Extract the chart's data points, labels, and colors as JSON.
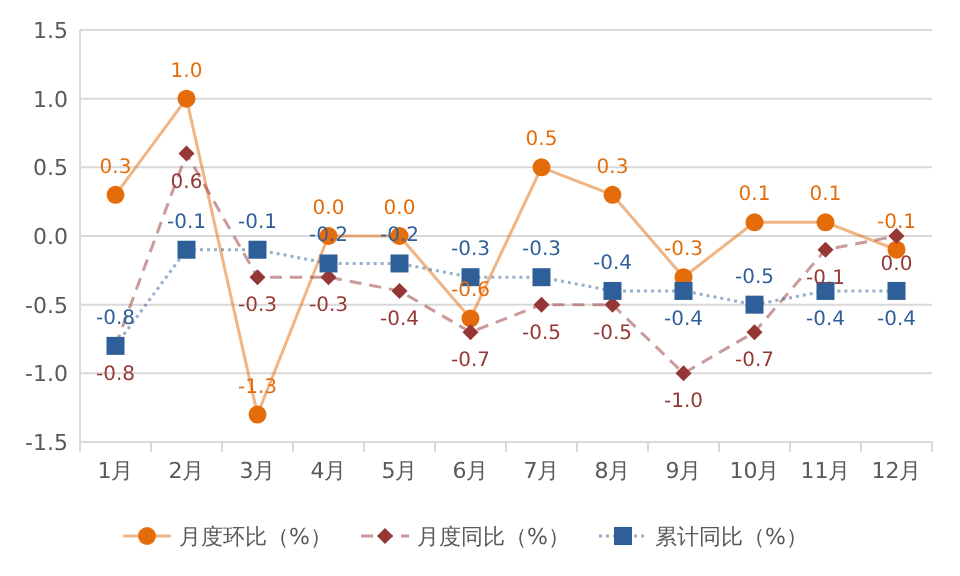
{
  "chart_data": {
    "type": "line",
    "categories": [
      "1月",
      "2月",
      "3月",
      "4月",
      "5月",
      "6月",
      "7月",
      "8月",
      "9月",
      "10月",
      "11月",
      "12月"
    ],
    "series": [
      {
        "name": "月度环比（%）",
        "color": "#e46c0a",
        "marker": "circle",
        "line_style": "solid",
        "values": [
          0.3,
          1.0,
          -1.3,
          0.0,
          0.0,
          -0.6,
          0.5,
          0.3,
          -0.3,
          0.1,
          0.1,
          -0.1
        ],
        "value_labels": [
          "0.3",
          "1.0",
          "-1.3",
          "0.0",
          "0.0",
          "-0.6",
          "0.5",
          "0.3",
          "-0.3",
          "0.1",
          "0.1",
          "-0.1"
        ]
      },
      {
        "name": "月度同比（%）",
        "color": "#953735",
        "marker": "diamond",
        "line_style": "dashed",
        "values": [
          -0.8,
          0.6,
          -0.3,
          -0.3,
          -0.4,
          -0.7,
          -0.5,
          -0.5,
          -1.0,
          -0.7,
          -0.1,
          0.0
        ],
        "value_labels": [
          "-0.8",
          "0.6",
          "-0.3",
          "-0.3",
          "-0.4",
          "-0.7",
          "-0.5",
          "-0.5",
          "-1.0",
          "-0.7",
          "-0.1",
          "0.0"
        ]
      },
      {
        "name": "累计同比（%）",
        "color": "#2f5f98",
        "marker": "square",
        "line_style": "dotted",
        "values": [
          -0.8,
          -0.1,
          -0.1,
          -0.2,
          -0.2,
          -0.3,
          -0.3,
          -0.4,
          -0.4,
          -0.5,
          -0.4,
          -0.4
        ],
        "value_labels": [
          "-0.8",
          "-0.1",
          "-0.1",
          "-0.2",
          "-0.2",
          "-0.3",
          "-0.3",
          "-0.4",
          "-0.4",
          "-0.5",
          "-0.4",
          "-0.4"
        ]
      }
    ],
    "ylim": [
      -1.5,
      1.5
    ],
    "yticks": [
      {
        "value": -1.5,
        "label": "-1.5"
      },
      {
        "value": -1.0,
        "label": "-1.0"
      },
      {
        "value": -0.5,
        "label": "-0.5"
      },
      {
        "value": 0,
        "label": "0.0"
      },
      {
        "value": 0.5,
        "label": "0.5"
      },
      {
        "value": 1.0,
        "label": "1.0"
      },
      {
        "value": 1.5,
        "label": "1.5"
      }
    ],
    "grid": "y",
    "legend": "bottom"
  }
}
